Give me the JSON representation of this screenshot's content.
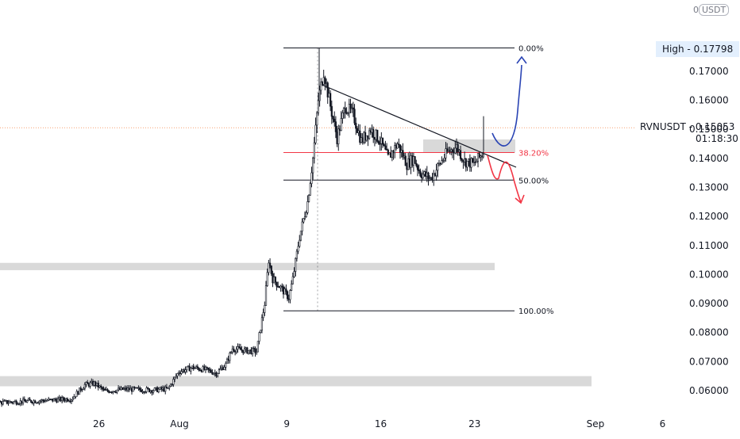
{
  "chart_data": {
    "type": "candlestick",
    "symbol": "RVNUSDT",
    "quote_unit": "USDT",
    "last_price": "0.15053",
    "countdown": "01:18:30",
    "high_label": "High",
    "high_value": "0.17798",
    "y_ticks": [
      "0.17000",
      "0.16000",
      "0.15000",
      "0.14000",
      "0.13000",
      "0.12000",
      "0.11000",
      "0.10000",
      "0.09000",
      "0.08000",
      "0.07000",
      "0.06000"
    ],
    "y_tick_values": [
      0.17,
      0.16,
      0.15,
      0.14,
      0.13,
      0.12,
      0.11,
      0.1,
      0.09,
      0.08,
      0.07,
      0.06
    ],
    "x_ticks": [
      {
        "label": "9",
        "day": -22
      },
      {
        "label": "26",
        "day": -6
      },
      {
        "label": "Aug",
        "day": 0
      },
      {
        "label": "9",
        "day": 8
      },
      {
        "label": "16",
        "day": 15
      },
      {
        "label": "23",
        "day": 22
      },
      {
        "label": "Sep",
        "day": 31
      },
      {
        "label": "6",
        "day": 36
      }
    ],
    "fib_levels": [
      {
        "label": "0.00%",
        "value": 0.178,
        "color": "#131722"
      },
      {
        "label": "38.20%",
        "value": 0.142,
        "color": "#f23645"
      },
      {
        "label": "50.00%",
        "value": 0.1325,
        "color": "#131722"
      },
      {
        "label": "100.00%",
        "value": 0.0875,
        "color": "#131722"
      }
    ],
    "support_zones": [
      {
        "from": 0.1015,
        "to": 0.104
      },
      {
        "from": 0.0615,
        "to": 0.065
      }
    ],
    "resistance_box": {
      "from": 0.142,
      "to": 0.1465
    },
    "price_path": [
      {
        "day": -23,
        "price": 0.0555
      },
      {
        "day": -21.5,
        "price": 0.0545
      },
      {
        "day": -19,
        "price": 0.0548
      },
      {
        "day": -16,
        "price": 0.0552
      },
      {
        "day": -13,
        "price": 0.056
      },
      {
        "day": -10,
        "price": 0.0566
      },
      {
        "day": -8,
        "price": 0.0572
      },
      {
        "day": -7,
        "price": 0.062
      },
      {
        "day": -6.3,
        "price": 0.0625
      },
      {
        "day": -5.5,
        "price": 0.0598
      },
      {
        "day": -4,
        "price": 0.0605
      },
      {
        "day": -2,
        "price": 0.0602
      },
      {
        "day": -0.8,
        "price": 0.0606
      },
      {
        "day": 0,
        "price": 0.0665
      },
      {
        "day": 1,
        "price": 0.068
      },
      {
        "day": 2,
        "price": 0.0672
      },
      {
        "day": 2.8,
        "price": 0.066
      },
      {
        "day": 3.5,
        "price": 0.069
      },
      {
        "day": 4,
        "price": 0.0745
      },
      {
        "day": 5,
        "price": 0.0738
      },
      {
        "day": 5.8,
        "price": 0.0735
      },
      {
        "day": 6.4,
        "price": 0.09
      },
      {
        "day": 6.7,
        "price": 0.105
      },
      {
        "day": 7,
        "price": 0.0985
      },
      {
        "day": 7.6,
        "price": 0.0955
      },
      {
        "day": 8.2,
        "price": 0.092
      },
      {
        "day": 8.5,
        "price": 0.0985
      },
      {
        "day": 9,
        "price": 0.113
      },
      {
        "day": 9.6,
        "price": 0.125
      },
      {
        "day": 10,
        "price": 0.14
      },
      {
        "day": 10.4,
        "price": 0.16
      },
      {
        "day": 10.8,
        "price": 0.17
      },
      {
        "day": 11.3,
        "price": 0.158
      },
      {
        "day": 11.8,
        "price": 0.147
      },
      {
        "day": 12.4,
        "price": 0.158
      },
      {
        "day": 13,
        "price": 0.155
      },
      {
        "day": 13.6,
        "price": 0.146
      },
      {
        "day": 14.3,
        "price": 0.15
      },
      {
        "day": 15,
        "price": 0.146
      },
      {
        "day": 15.6,
        "price": 0.14
      },
      {
        "day": 16.3,
        "price": 0.145
      },
      {
        "day": 17,
        "price": 0.138
      },
      {
        "day": 17.5,
        "price": 0.14
      },
      {
        "day": 18,
        "price": 0.135
      },
      {
        "day": 18.8,
        "price": 0.133
      },
      {
        "day": 19.3,
        "price": 0.137
      },
      {
        "day": 20,
        "price": 0.142
      },
      {
        "day": 20.7,
        "price": 0.144
      },
      {
        "day": 21.3,
        "price": 0.139
      },
      {
        "day": 22,
        "price": 0.138
      },
      {
        "day": 22.7,
        "price": 0.142
      },
      {
        "day": 23,
        "price": 0.1505
      }
    ]
  }
}
